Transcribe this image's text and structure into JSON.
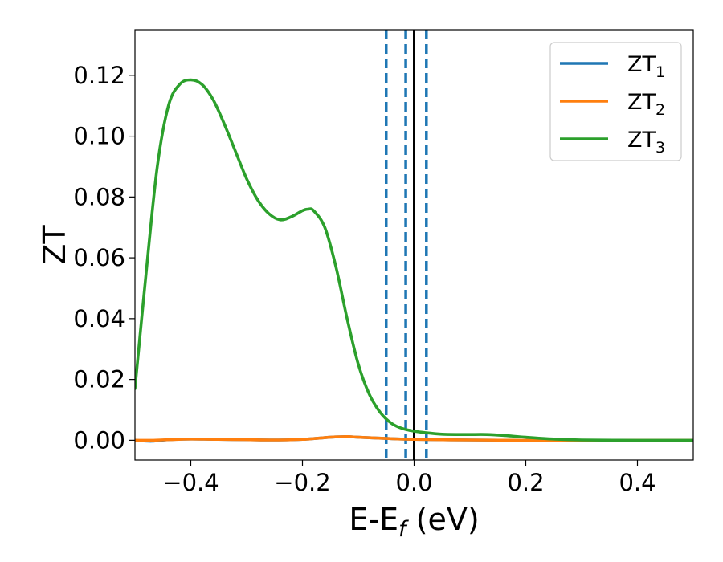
{
  "chart_data": {
    "type": "line",
    "xlabel": "E-E",
    "xlabel_subscript": "f",
    "xlabel_unit": " (eV)",
    "ylabel": "ZT",
    "xlim": [
      -0.5,
      0.5
    ],
    "ylim": [
      -0.0065,
      0.135
    ],
    "xticks": [
      -0.4,
      -0.2,
      0.0,
      0.2,
      0.4
    ],
    "xtick_labels": [
      "−0.4",
      "−0.2",
      "0.0",
      "0.2",
      "0.4"
    ],
    "yticks": [
      0.0,
      0.02,
      0.04,
      0.06,
      0.08,
      0.1,
      0.12
    ],
    "ytick_labels": [
      "0.00",
      "0.02",
      "0.04",
      "0.06",
      "0.08",
      "0.10",
      "0.12"
    ],
    "grid": false,
    "legend_position": "top-right",
    "vlines": [
      {
        "x": 0.0,
        "color": "#000000",
        "style": "solid"
      },
      {
        "x": -0.05,
        "color": "#1f77b4",
        "style": "dashed"
      },
      {
        "x": -0.015,
        "color": "#1f77b4",
        "style": "dashed"
      },
      {
        "x": 0.022,
        "color": "#1f77b4",
        "style": "dashed"
      }
    ],
    "series": [
      {
        "name": "ZT",
        "subscript": "1",
        "color": "#1f77b4",
        "x": [
          -0.5,
          -0.47,
          -0.44,
          -0.4,
          -0.35,
          -0.3,
          -0.25,
          -0.2,
          -0.15,
          -0.12,
          -0.1,
          -0.05,
          0.0,
          0.1,
          0.2,
          0.3,
          0.4,
          0.5
        ],
        "y": [
          0.0,
          -0.0003,
          0.0002,
          0.0004,
          0.0003,
          0.0002,
          0.0001,
          0.0003,
          0.001,
          0.0012,
          0.001,
          0.0006,
          0.0003,
          0.0001,
          0.0,
          0.0,
          0.0,
          0.0
        ]
      },
      {
        "name": "ZT",
        "subscript": "2",
        "color": "#ff7f0e",
        "x": [
          -0.5,
          -0.47,
          -0.44,
          -0.4,
          -0.35,
          -0.3,
          -0.25,
          -0.2,
          -0.15,
          -0.12,
          -0.1,
          -0.05,
          0.0,
          0.1,
          0.2,
          0.3,
          0.4,
          0.5
        ],
        "y": [
          0.0,
          0.0,
          0.0002,
          0.0004,
          0.0003,
          0.0002,
          0.0001,
          0.0003,
          0.001,
          0.0012,
          0.001,
          0.0006,
          0.0003,
          0.0001,
          0.0,
          0.0,
          0.0,
          0.0
        ]
      },
      {
        "name": "ZT",
        "subscript": "3",
        "color": "#2ca02c",
        "x": [
          -0.5,
          -0.48,
          -0.46,
          -0.44,
          -0.42,
          -0.4,
          -0.38,
          -0.36,
          -0.34,
          -0.32,
          -0.3,
          -0.28,
          -0.26,
          -0.24,
          -0.22,
          -0.2,
          -0.19,
          -0.18,
          -0.16,
          -0.14,
          -0.12,
          -0.1,
          -0.08,
          -0.06,
          -0.04,
          -0.02,
          0.0,
          0.02,
          0.05,
          0.08,
          0.1,
          0.13,
          0.16,
          0.2,
          0.25,
          0.3,
          0.4,
          0.5
        ],
        "y": [
          0.017,
          0.055,
          0.09,
          0.11,
          0.117,
          0.1185,
          0.117,
          0.112,
          0.104,
          0.095,
          0.086,
          0.079,
          0.0745,
          0.0725,
          0.0735,
          0.0755,
          0.076,
          0.0755,
          0.07,
          0.057,
          0.04,
          0.025,
          0.015,
          0.009,
          0.0055,
          0.0038,
          0.003,
          0.0025,
          0.002,
          0.0019,
          0.0019,
          0.0019,
          0.0016,
          0.001,
          0.0004,
          0.0001,
          0.0,
          0.0
        ]
      }
    ]
  }
}
